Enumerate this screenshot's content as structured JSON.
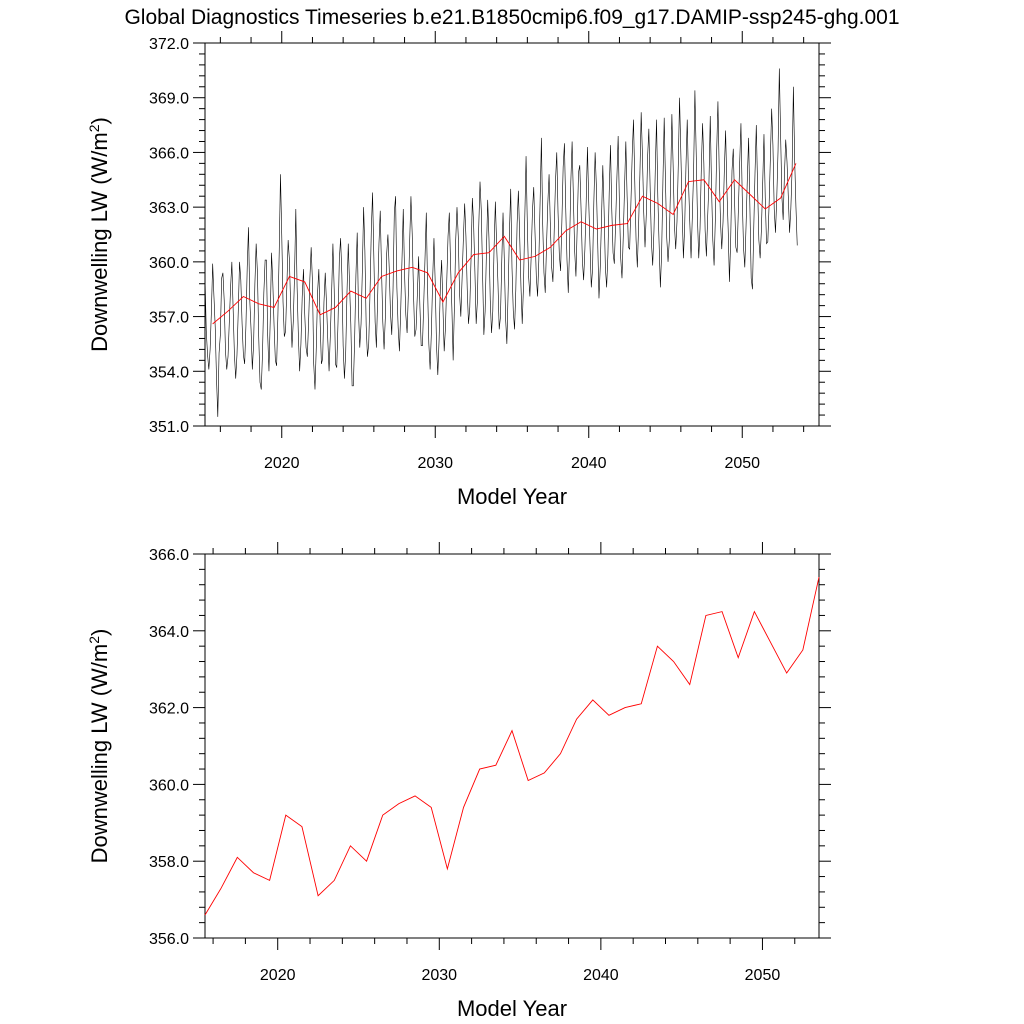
{
  "title": "Global Diagnostics Timeseries b.e21.B1850cmip6.f09_g17.DAMIP-ssp245-ghg.001",
  "colors": {
    "monthly": "#000000",
    "annual": "#ff0000"
  },
  "chart_data": [
    {
      "type": "line",
      "xlabel": "Model Year",
      "ylabel": "Downwelling LW (W/m",
      "ylabel_sup": "2",
      "ylabel_end": ")",
      "xlim": [
        2015,
        2055
      ],
      "ylim": [
        351.0,
        372.0
      ],
      "xticks": [
        2020,
        2030,
        2040,
        2050
      ],
      "xtick_labels": [
        "2020",
        "2030",
        "2040",
        "2050"
      ],
      "yticks": [
        351.0,
        354.0,
        357.0,
        360.0,
        363.0,
        366.0,
        369.0,
        372.0
      ],
      "ytick_labels": [
        "351.0",
        "354.0",
        "357.0",
        "360.0",
        "363.0",
        "366.0",
        "369.0",
        "372.0"
      ],
      "grid": false,
      "series": [
        {
          "style": "monthly",
          "x_start": 2015.0,
          "x_step": 0.08333,
          "values": [
            359.2,
            356.2,
            354.9,
            354.1,
            355.2,
            357.3,
            359.9,
            358.1,
            356.4,
            353.6,
            351.5,
            355.0,
            356.0,
            359.1,
            359.4,
            357.9,
            355.1,
            354.1,
            354.8,
            356.7,
            358.6,
            360.0,
            357.4,
            354.9,
            353.6,
            354.9,
            357.3,
            360.0,
            359.0,
            356.6,
            354.9,
            354.4,
            356.5,
            359.7,
            361.9,
            357.9,
            356.3,
            354.1,
            355.5,
            358.8,
            361.0,
            359.4,
            355.9,
            353.4,
            353.0,
            355.1,
            358.3,
            360.1,
            360.1,
            356.0,
            354.0,
            356.8,
            360.5,
            358.9,
            356.5,
            354.6,
            354.3,
            357.1,
            360.5,
            364.8,
            361.5,
            357.8,
            355.9,
            356.2,
            358.7,
            361.2,
            360.1,
            357.5,
            355.3,
            356.7,
            359.3,
            362.9,
            358.6,
            355.9,
            354.0,
            355.5,
            358.1,
            359.6,
            357.1,
            355.3,
            354.8,
            356.7,
            359.1,
            360.8,
            358.9,
            354.4,
            353.0,
            355.3,
            358.3,
            359.6,
            356.7,
            354.4,
            354.7,
            357.8,
            359.4,
            357.7,
            355.7,
            354.0,
            356.0,
            358.3,
            361.0,
            358.5,
            354.4,
            354.2,
            356.7,
            360.1,
            361.3,
            359.3,
            355.4,
            353.6,
            355.0,
            358.3,
            361.0,
            358.8,
            356.6,
            353.2,
            353.2,
            355.8,
            359.3,
            361.6,
            357.3,
            355.3,
            356.6,
            359.5,
            363.0,
            360.6,
            356.5,
            354.8,
            355.5,
            358.3,
            361.7,
            363.8,
            360.3,
            356.7,
            355.3,
            358.1,
            361.0,
            362.8,
            359.6,
            356.7,
            355.2,
            357.0,
            360.4,
            361.5,
            359.7,
            357.2,
            356.0,
            358.5,
            362.7,
            363.6,
            358.6,
            356.4,
            355.1,
            357.3,
            360.1,
            362.9,
            359.4,
            357.1,
            356.1,
            358.3,
            361.1,
            363.6,
            361.5,
            358.3,
            355.9,
            356.3,
            358.2,
            360.3,
            357.6,
            355.4,
            355.4,
            357.7,
            360.2,
            362.7,
            358.6,
            355.5,
            354.1,
            356.2,
            359.1,
            361.3,
            358.8,
            355.4,
            353.8,
            355.7,
            358.7,
            360.1,
            357.5,
            355.1,
            356.4,
            358.9,
            361.4,
            362.7,
            359.8,
            357.5,
            354.6,
            357.6,
            361.2,
            363.0,
            361.4,
            358.3,
            357.0,
            359.1,
            361.3,
            363.2,
            361.4,
            358.5,
            356.6,
            357.5,
            360.2,
            363.5,
            362.1,
            359.5,
            356.6,
            357.9,
            361.9,
            364.4,
            362.8,
            359.4,
            356.0,
            357.3,
            360.5,
            363.4,
            361.3,
            357.9,
            356.1,
            357.3,
            360.8,
            363.3,
            360.9,
            358.9,
            356.3,
            357.0,
            360.0,
            362.7,
            360.1,
            356.9,
            355.5,
            358.4,
            361.6,
            364.0,
            359.7,
            357.3,
            356.3,
            358.5,
            362.1,
            363.9,
            361.5,
            358.7,
            356.6,
            358.7,
            362.4,
            365.8,
            362.0,
            359.2,
            358.1,
            360.3,
            362.8,
            364.1,
            361.6,
            359.2,
            358.1,
            360.1,
            363.4,
            366.8,
            362.1,
            359.4,
            358.3,
            360.9,
            363.2,
            364.8,
            362.0,
            359.7,
            358.9,
            361.7,
            364.4,
            366.0,
            362.7,
            360.4,
            359.5,
            362.2,
            365.2,
            366.5,
            363.0,
            360.1,
            358.3,
            360.8,
            364.4,
            366.6,
            363.5,
            360.6,
            359.2,
            361.9,
            364.9,
            365.3,
            362.9,
            360.1,
            359.0,
            360.7,
            363.3,
            366.3,
            363.3,
            360.9,
            358.6,
            359.6,
            363.3,
            366.0,
            364.1,
            361.1,
            358.0,
            359.7,
            362.4,
            365.3,
            362.9,
            359.7,
            358.6,
            360.4,
            363.8,
            366.4,
            362.9,
            360.5,
            359.9,
            362.1,
            364.6,
            366.9,
            363.1,
            360.2,
            359.1,
            361.4,
            364.1,
            366.6,
            363.6,
            360.8,
            360.7,
            363.3,
            365.9,
            367.8,
            364.4,
            361.2,
            359.7,
            362.0,
            364.8,
            368.2,
            365.8,
            362.7,
            360.8,
            362.6,
            365.7,
            367.3,
            364.1,
            361.1,
            359.8,
            361.7,
            365.0,
            367.8,
            363.6,
            361.0,
            358.6,
            360.5,
            364.4,
            367.9,
            364.4,
            361.3,
            360.0,
            361.2,
            364.4,
            368.1,
            365.2,
            362.0,
            360.7,
            362.2,
            365.3,
            369.0,
            366.0,
            362.9,
            360.2,
            361.9,
            365.2,
            367.8,
            364.4,
            362.2,
            360.2,
            362.5,
            365.0,
            369.4,
            366.0,
            362.4,
            360.2,
            361.8,
            365.1,
            367.6,
            365.4,
            361.7,
            360.3,
            362.5,
            364.4,
            368.0,
            364.1,
            361.2,
            359.8,
            362.4,
            366.0,
            368.8,
            365.1,
            362.2,
            360.7,
            362.2,
            365.0,
            367.2,
            364.0,
            361.8,
            358.9,
            361.3,
            365.0,
            366.2,
            363.4,
            360.8,
            360.5,
            362.9,
            365.4,
            367.6,
            363.6,
            360.8,
            359.7,
            362.0,
            364.6,
            366.8,
            363.0,
            359.1,
            358.5,
            361.8,
            364.9,
            367.5,
            364.1,
            361.2,
            360.2,
            361.8,
            364.3,
            367.0,
            363.5,
            361.0,
            361.1,
            363.1,
            365.7,
            368.4,
            366.4,
            362.9,
            361.6,
            363.5,
            366.1,
            370.6,
            367.0,
            363.6,
            362.3,
            364.8,
            366.7,
            365.5,
            363.6,
            361.6,
            362.9,
            365.1,
            369.6,
            365.6,
            363.0,
            360.9
          ]
        },
        {
          "style": "annual",
          "x": [
            2015.5,
            2016.5,
            2017.5,
            2018.5,
            2019.5,
            2020.5,
            2021.5,
            2022.5,
            2023.5,
            2024.5,
            2025.5,
            2026.5,
            2027.5,
            2028.5,
            2029.5,
            2030.5,
            2031.5,
            2032.5,
            2033.5,
            2034.5,
            2035.5,
            2036.5,
            2037.5,
            2038.5,
            2039.5,
            2040.5,
            2041.5,
            2042.5,
            2043.5,
            2044.5,
            2045.5,
            2046.5,
            2047.5,
            2048.5,
            2049.5,
            2050.5,
            2051.5,
            2052.5,
            2053.5
          ],
          "values": [
            356.6,
            357.3,
            358.1,
            357.7,
            357.5,
            359.2,
            358.9,
            357.1,
            357.5,
            358.4,
            358.0,
            359.2,
            359.5,
            359.7,
            359.4,
            357.8,
            359.4,
            360.4,
            360.5,
            361.4,
            360.1,
            360.3,
            360.8,
            361.7,
            362.2,
            361.8,
            362.0,
            362.1,
            363.6,
            363.2,
            362.6,
            364.4,
            364.5,
            363.3,
            364.5,
            363.7,
            362.9,
            363.5,
            365.4
          ]
        }
      ]
    },
    {
      "type": "line",
      "xlabel": "Model Year",
      "ylabel": "Downwelling LW (W/m",
      "ylabel_sup": "2",
      "ylabel_end": ")",
      "xlim": [
        2015.5,
        2053.5
      ],
      "ylim": [
        356.0,
        366.0
      ],
      "xticks": [
        2020,
        2030,
        2040,
        2050
      ],
      "xtick_labels": [
        "2020",
        "2030",
        "2040",
        "2050"
      ],
      "yticks": [
        356.0,
        358.0,
        360.0,
        362.0,
        364.0,
        366.0
      ],
      "ytick_labels": [
        "356.0",
        "358.0",
        "360.0",
        "362.0",
        "364.0",
        "366.0"
      ],
      "grid": false,
      "series": [
        {
          "style": "annual",
          "x": [
            2015.5,
            2016.5,
            2017.5,
            2018.5,
            2019.5,
            2020.5,
            2021.5,
            2022.5,
            2023.5,
            2024.5,
            2025.5,
            2026.5,
            2027.5,
            2028.5,
            2029.5,
            2030.5,
            2031.5,
            2032.5,
            2033.5,
            2034.5,
            2035.5,
            2036.5,
            2037.5,
            2038.5,
            2039.5,
            2040.5,
            2041.5,
            2042.5,
            2043.5,
            2044.5,
            2045.5,
            2046.5,
            2047.5,
            2048.5,
            2049.5,
            2050.5,
            2051.5,
            2052.5,
            2053.5
          ],
          "values": [
            356.6,
            357.3,
            358.1,
            357.7,
            357.5,
            359.2,
            358.9,
            357.1,
            357.5,
            358.4,
            358.0,
            359.2,
            359.5,
            359.7,
            359.4,
            357.8,
            359.4,
            360.4,
            360.5,
            361.4,
            360.1,
            360.3,
            360.8,
            361.7,
            362.2,
            361.8,
            362.0,
            362.1,
            363.6,
            363.2,
            362.6,
            364.4,
            364.5,
            363.3,
            364.5,
            363.7,
            362.9,
            363.5,
            365.4
          ]
        }
      ]
    }
  ]
}
